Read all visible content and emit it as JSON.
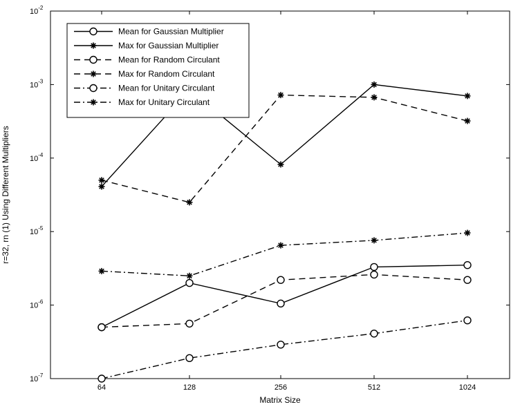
{
  "chart_data": {
    "type": "line",
    "title": "",
    "xlabel": "Matrix Size",
    "ylabel": "r=32, rn (1) Using Different Multipliers",
    "y_scale": "log",
    "ylim": [
      1e-07,
      0.01
    ],
    "categories": [
      "64",
      "128",
      "256",
      "512",
      "1024"
    ],
    "y_ticks": [
      {
        "value": 1e-07,
        "base": "10",
        "exp": "-7"
      },
      {
        "value": 1e-06,
        "base": "10",
        "exp": "-6"
      },
      {
        "value": 1e-05,
        "base": "10",
        "exp": "-5"
      },
      {
        "value": 0.0001,
        "base": "10",
        "exp": "-4"
      },
      {
        "value": 0.001,
        "base": "10",
        "exp": "-3"
      },
      {
        "value": 0.01,
        "base": "10",
        "exp": "-2"
      }
    ],
    "grid": false,
    "legend_position": "top-left",
    "series": [
      {
        "name": "Mean for Gaussian Multiplier",
        "line": "solid",
        "marker": "circle",
        "values": [
          5e-07,
          2e-06,
          1.05e-06,
          3.3e-06,
          3.5e-06
        ]
      },
      {
        "name": "Max for Gaussian Multiplier",
        "line": "solid",
        "marker": "star",
        "values": [
          4.1e-05,
          0.00085,
          8.2e-05,
          0.001,
          0.0007
        ]
      },
      {
        "name": "Mean for Random Circulant",
        "line": "dashed",
        "marker": "circle",
        "values": [
          5e-07,
          5.6e-07,
          2.2e-06,
          2.6e-06,
          2.2e-06
        ]
      },
      {
        "name": "Max for Random Circulant",
        "line": "dashed",
        "marker": "star",
        "values": [
          5e-05,
          2.5e-05,
          0.00072,
          0.00067,
          0.00032
        ]
      },
      {
        "name": "Mean for Unitary Circulant",
        "line": "dashdot",
        "marker": "circle",
        "values": [
          1e-07,
          1.9e-07,
          2.9e-07,
          4.1e-07,
          6.2e-07
        ]
      },
      {
        "name": "Max for Unitary Circulant",
        "line": "dashdot",
        "marker": "star",
        "values": [
          2.9e-06,
          2.5e-06,
          6.5e-06,
          7.6e-06,
          9.6e-06
        ]
      }
    ]
  }
}
